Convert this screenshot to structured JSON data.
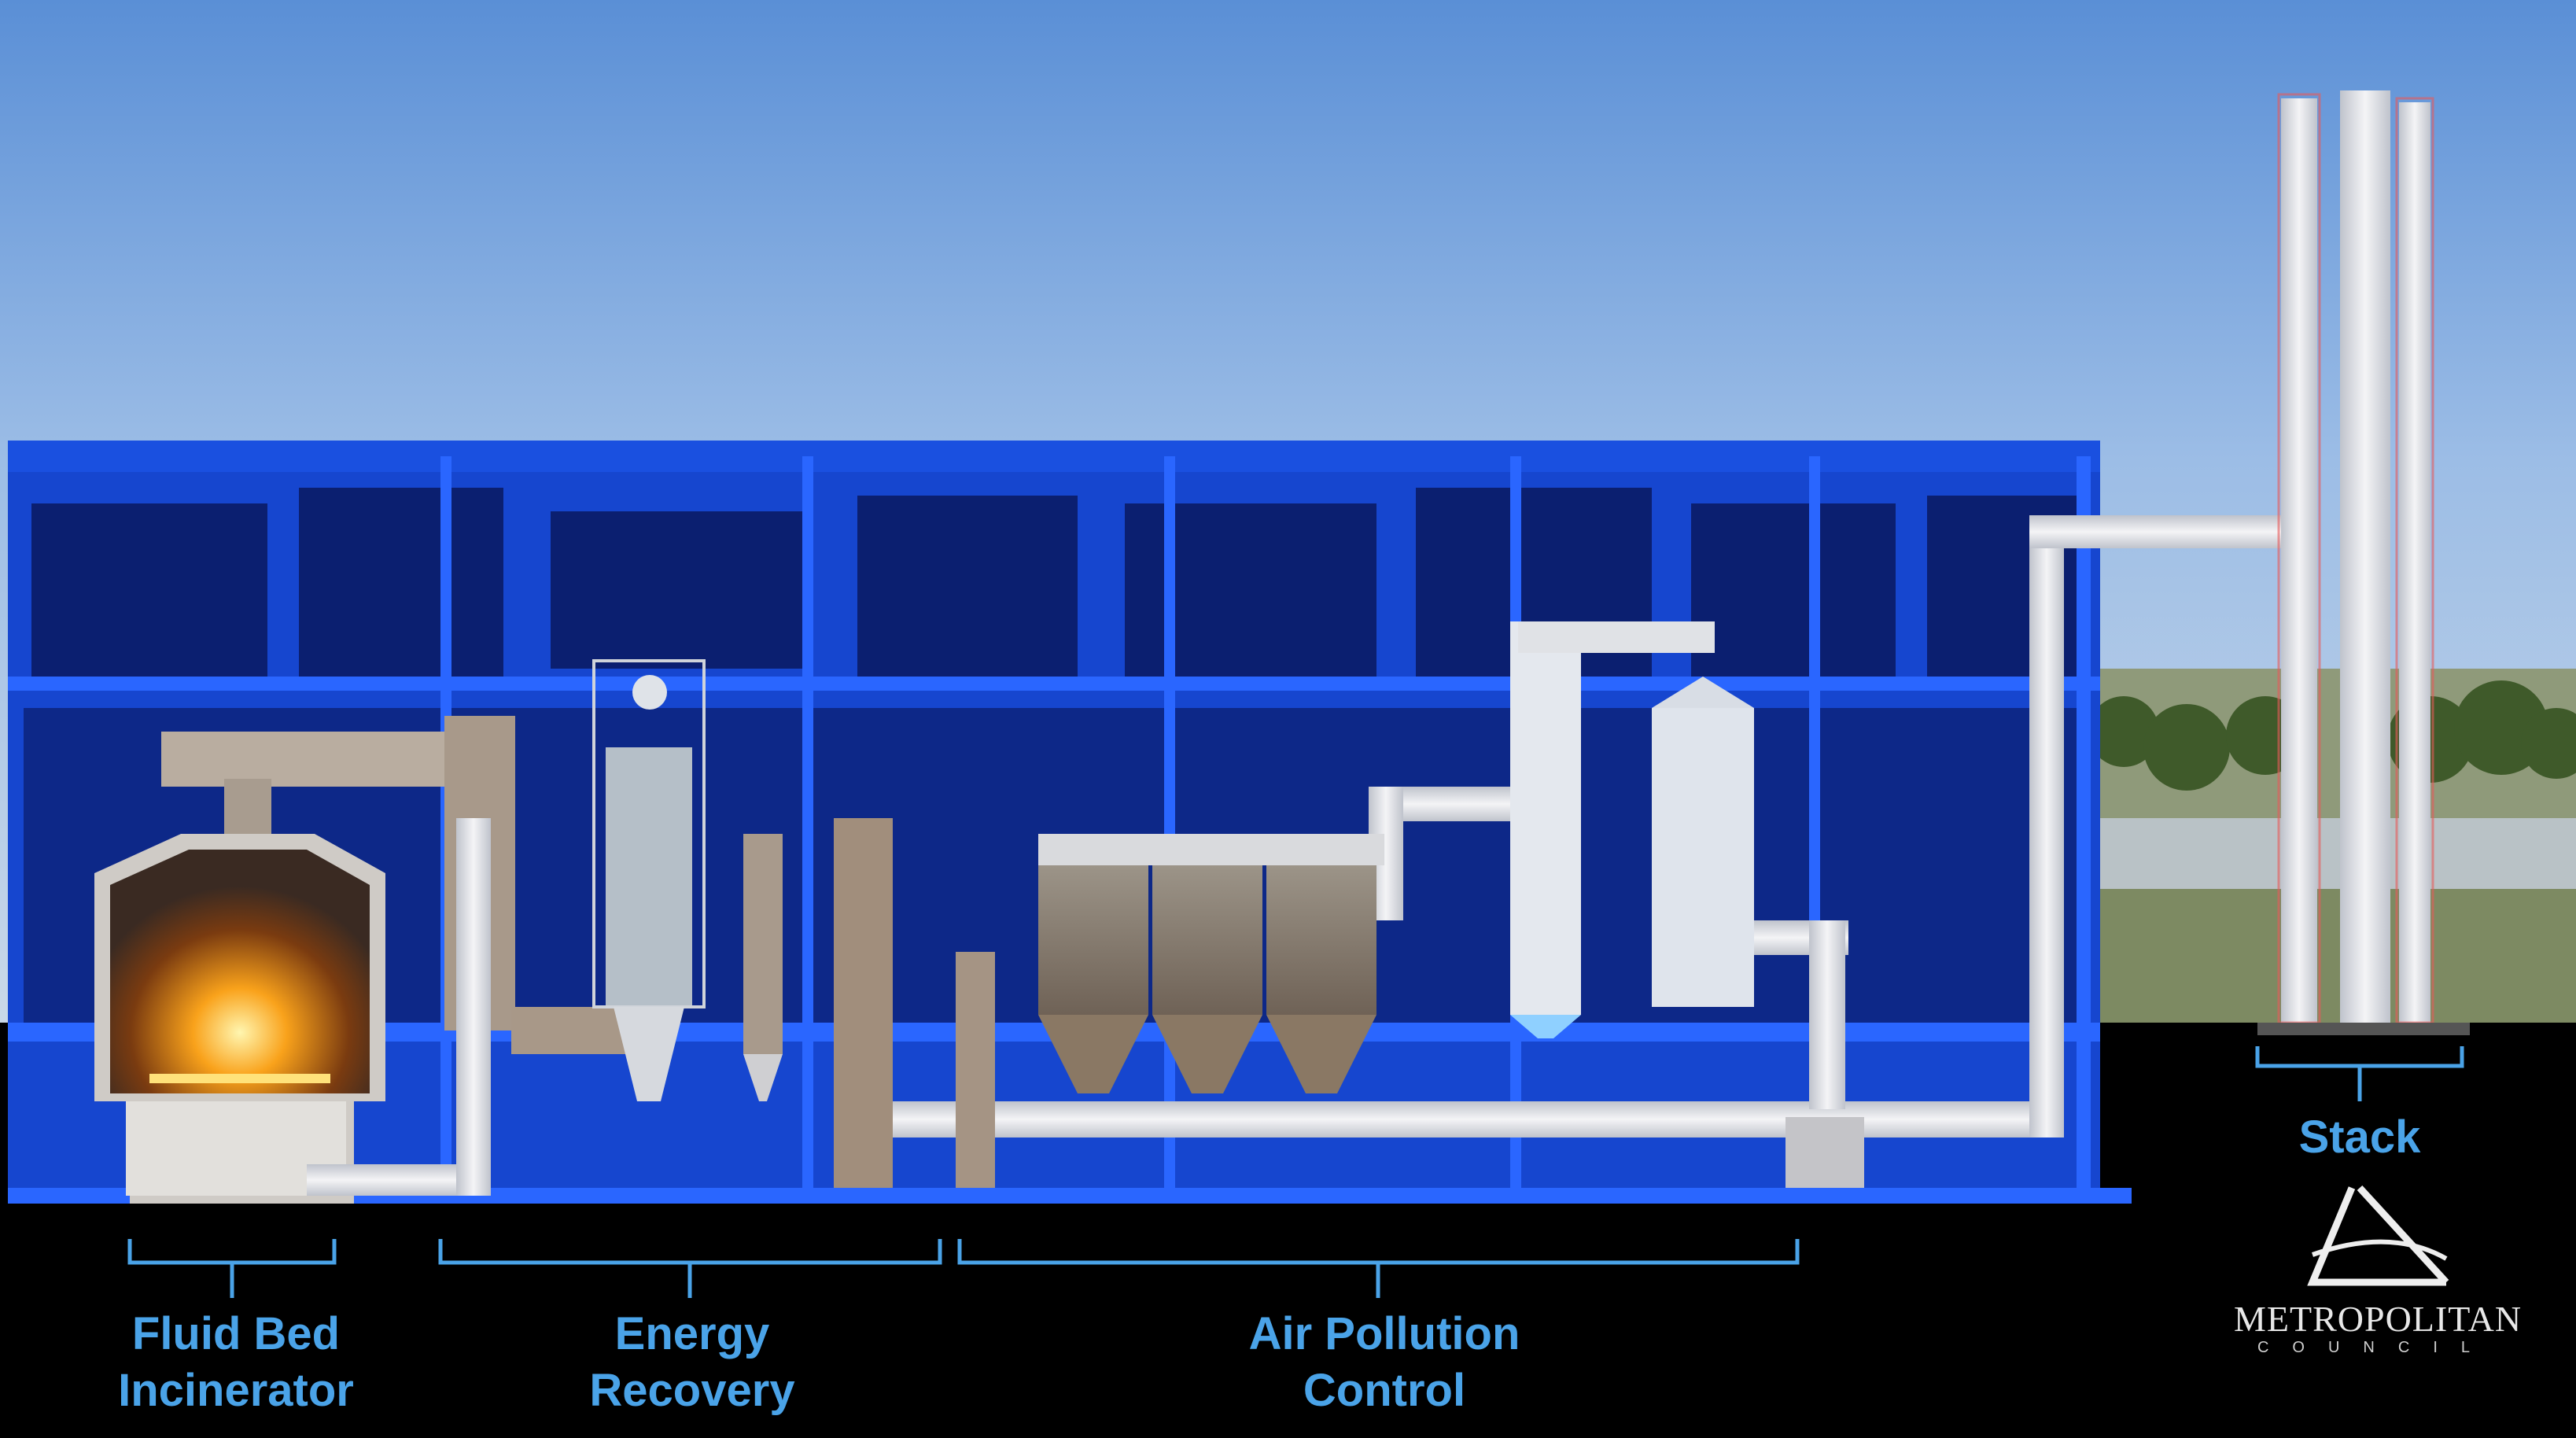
{
  "labels": {
    "incinerator": {
      "line1": "Fluid Bed",
      "line2": "Incinerator"
    },
    "energy": {
      "line1": "Energy",
      "line2": "Recovery"
    },
    "air": {
      "line1": "Air Pollution",
      "line2": "Control"
    },
    "stack": "Stack"
  },
  "logo": {
    "name": "METROPOLITAN",
    "sub": "COUNCIL"
  },
  "colors": {
    "label": "#4aa3e8",
    "structure": "#1447d6",
    "duct": "#e6e6ea",
    "sky": "#5c8ed0"
  }
}
